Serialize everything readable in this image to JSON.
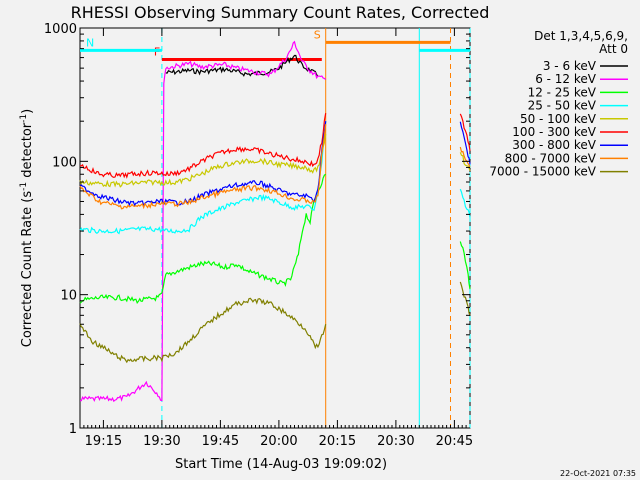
{
  "chart_data": {
    "type": "line",
    "title": "RHESSI Observing Summary Count Rates, Corrected",
    "xlabel": "Start Time (14-Aug-03 19:09:02)",
    "ylabel": "Corrected Count Rate (s",
    "ylabel_sup1": "-1",
    "ylabel_mid": " detector",
    "ylabel_sup2": "-1",
    "ylabel_end": ")",
    "y_scale": "log",
    "ylim": [
      1,
      1000
    ],
    "y_ticks": [
      {
        "v": 1,
        "label": "1"
      },
      {
        "v": 10,
        "label": "10"
      },
      {
        "v": 100,
        "label": "100"
      },
      {
        "v": 1000,
        "label": "1000"
      }
    ],
    "xlim_minutes": [
      0,
      100
    ],
    "x_ticks": [
      {
        "m": 6,
        "label": "19:15"
      },
      {
        "m": 21,
        "label": "19:30"
      },
      {
        "m": 36,
        "label": "19:45"
      },
      {
        "m": 51,
        "label": "20:00"
      },
      {
        "m": 66,
        "label": "20:15"
      },
      {
        "m": 81,
        "label": "20:30"
      },
      {
        "m": 96,
        "label": "20:45"
      }
    ],
    "detectors_line1": "Det 1,3,4,5,6,9,",
    "detectors_line2": "Att 0",
    "series": [
      {
        "name": "3 - 6 keV",
        "color": "#000000",
        "x": [
          22,
          25,
          28,
          31,
          34,
          37,
          40,
          43,
          46,
          49,
          51,
          53,
          55,
          57,
          59,
          61
        ],
        "y": [
          460,
          470,
          480,
          470,
          480,
          490,
          470,
          450,
          460,
          470,
          500,
          560,
          620,
          520,
          480,
          440
        ]
      },
      {
        "name": "6 - 12 keV",
        "color": "#ff00ff",
        "x": [
          0,
          9,
          12,
          17,
          20,
          21,
          21.5,
          22,
          25,
          28,
          31,
          34,
          37,
          40,
          43,
          46,
          49,
          51,
          53,
          55,
          57,
          59,
          61,
          63
        ],
        "y": [
          1.65,
          1.65,
          1.7,
          2.2,
          1.8,
          1.6,
          400,
          500,
          520,
          540,
          510,
          520,
          530,
          500,
          480,
          460,
          450,
          520,
          600,
          780,
          560,
          480,
          430,
          410
        ]
      },
      {
        "name": "12 - 25 keV",
        "color": "#00ff00",
        "x": [
          0,
          5,
          10,
          15,
          20,
          21,
          22,
          25,
          28,
          31,
          34,
          37,
          40,
          43,
          46,
          49,
          52,
          54,
          56,
          57,
          58,
          59,
          60,
          61,
          62,
          63
        ],
        "y": [
          9,
          9.5,
          9.5,
          9,
          9.5,
          10,
          14,
          15,
          16,
          17,
          17,
          16,
          17,
          15,
          14,
          13,
          12,
          13,
          20,
          30,
          40,
          35,
          50,
          60,
          70,
          80
        ]
      },
      {
        "name": "25 - 50 keV",
        "color": "#00ffff",
        "x": [
          0,
          5,
          10,
          15,
          20,
          22,
          25,
          28,
          31,
          34,
          37,
          40,
          43,
          46,
          49,
          52,
          55,
          58,
          60,
          61,
          62,
          63
        ],
        "y": [
          31,
          30,
          30,
          31,
          31,
          30,
          30,
          31,
          38,
          42,
          45,
          49,
          51,
          54,
          52,
          48,
          45,
          46,
          44,
          60,
          100,
          200
        ]
      },
      {
        "name": "50 - 100 keV",
        "color": "#c8c800",
        "x": [
          0,
          5,
          10,
          15,
          20,
          22,
          25,
          28,
          31,
          34,
          37,
          40,
          43,
          46,
          49,
          52,
          55,
          58,
          60,
          61,
          62,
          63
        ],
        "y": [
          70,
          68,
          67,
          69,
          70,
          69,
          70,
          74,
          80,
          88,
          94,
          98,
          100,
          102,
          97,
          94,
          92,
          90,
          84,
          90,
          110,
          160
        ]
      },
      {
        "name": "100 - 300 keV",
        "color": "#ff0000",
        "x": [
          0,
          5,
          10,
          15,
          20,
          22,
          25,
          28,
          31,
          34,
          37,
          40,
          43,
          46,
          49,
          52,
          55,
          58,
          60,
          61,
          62,
          63
        ],
        "y": [
          95,
          80,
          78,
          81,
          82,
          80,
          82,
          88,
          99,
          110,
          118,
          124,
          124,
          120,
          113,
          108,
          103,
          99,
          94,
          102,
          140,
          230
        ]
      },
      {
        "name": "300 - 800 keV",
        "color": "#0000ff",
        "x": [
          0,
          5,
          10,
          15,
          20,
          22,
          25,
          28,
          31,
          34,
          37,
          40,
          43,
          46,
          49,
          52,
          55,
          58,
          60,
          61,
          62,
          63
        ],
        "y": [
          65,
          55,
          50,
          48,
          50,
          50,
          49,
          50,
          55,
          59,
          63,
          66,
          68,
          69,
          64,
          59,
          56,
          55,
          52,
          60,
          120,
          200
        ]
      },
      {
        "name": "800 - 7000 keV",
        "color": "#ff8000",
        "x": [
          0,
          5,
          10,
          15,
          20,
          22,
          25,
          28,
          31,
          34,
          37,
          40,
          43,
          46,
          49,
          52,
          55,
          58,
          60,
          61,
          62,
          63
        ],
        "y": [
          63,
          50,
          46,
          46,
          48,
          48,
          48,
          49,
          53,
          56,
          59,
          61,
          63,
          63,
          60,
          56,
          52,
          51,
          49,
          55,
          110,
          190
        ]
      },
      {
        "name": "7000 - 15000 keV",
        "color": "#808000",
        "x": [
          0,
          3,
          6,
          9,
          12,
          15,
          18,
          20,
          21,
          22,
          24,
          26,
          28,
          31,
          34,
          37,
          40,
          43,
          46,
          49,
          52,
          55,
          58,
          60,
          61,
          62,
          63
        ],
        "y": [
          6,
          4.5,
          4,
          3.5,
          3.2,
          3.3,
          3.3,
          3.4,
          3.3,
          3.5,
          3.6,
          4.0,
          4.5,
          5.5,
          6.5,
          7.5,
          8.5,
          9.0,
          9.0,
          8.5,
          7.5,
          6.5,
          5.5,
          4.2,
          4.0,
          4.8,
          6.0
        ]
      }
    ],
    "late_series": [
      {
        "color": "#ff0000",
        "x": [
          97.5,
          98.5,
          99.5,
          100
        ],
        "y": [
          230,
          180,
          140,
          120
        ]
      },
      {
        "color": "#0000ff",
        "x": [
          97.5,
          98.5,
          99.5,
          100
        ],
        "y": [
          200,
          150,
          110,
          95
        ]
      },
      {
        "color": "#ff8000",
        "x": [
          97.5,
          98.5,
          99.5,
          100
        ],
        "y": [
          130,
          110,
          95,
          90
        ]
      },
      {
        "color": "#c8c800",
        "x": [
          97.5,
          98.5,
          99.5,
          100
        ],
        "y": [
          120,
          100,
          90,
          85
        ]
      },
      {
        "color": "#00ffff",
        "x": [
          97.5,
          98.5,
          99.5,
          100
        ],
        "y": [
          60,
          50,
          42,
          38
        ]
      },
      {
        "color": "#00ff00",
        "x": [
          97.5,
          98.5,
          99.5,
          100
        ],
        "y": [
          25,
          20,
          14,
          11
        ]
      },
      {
        "color": "#808000",
        "x": [
          97.5,
          98.5,
          99.5,
          100
        ],
        "y": [
          12,
          10,
          8,
          7
        ]
      }
    ],
    "flags": [
      {
        "label": "F",
        "color": "#ff0000",
        "x": [
          21,
          62
        ],
        "y": 580
      },
      {
        "label": "N",
        "color": "#00ffff",
        "x": [
          0,
          21
        ],
        "y": 680
      },
      {
        "label": "",
        "color": "#00ffff",
        "x": [
          87,
          100
        ],
        "y": 680
      },
      {
        "label": "S",
        "color": "#ff8000",
        "x": [
          63,
          95
        ],
        "y": 780
      }
    ],
    "vlines": [
      {
        "m": 21,
        "color": "#00ffff",
        "dash": true
      },
      {
        "m": 63,
        "color": "#ff8000",
        "dash": false
      },
      {
        "m": 87,
        "color": "#00ffff",
        "dash": false
      },
      {
        "m": 95,
        "color": "#ff8000",
        "dash": true
      },
      {
        "m": 100,
        "color": "#00ffff",
        "dash": true
      }
    ]
  },
  "footer": {
    "timestamp": "22-Oct-2021 07:35"
  }
}
